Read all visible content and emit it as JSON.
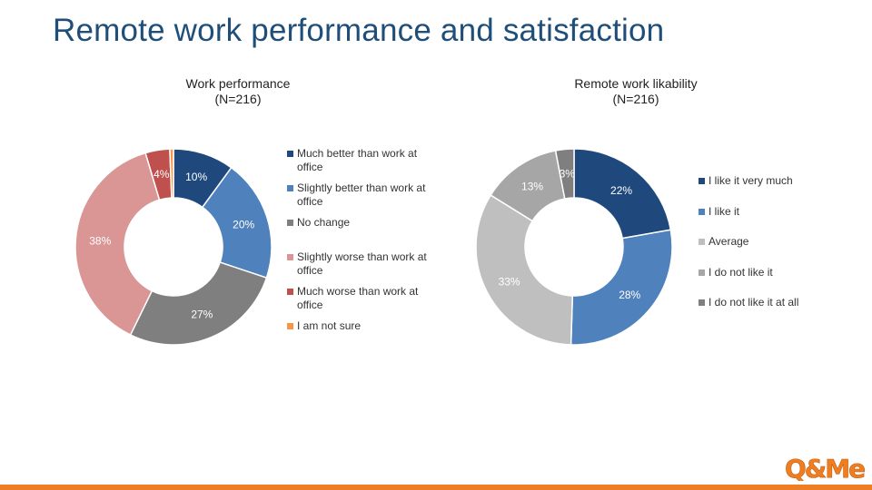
{
  "slide": {
    "title": "Remote work performance and satisfaction",
    "accent_color": "#ef7d22"
  },
  "logo": {
    "text": "Q&Me"
  },
  "chart_data": [
    {
      "type": "pie",
      "donut": true,
      "title": "Work performance",
      "subtitle": "(N=216)",
      "legend_position": "right",
      "series": [
        {
          "name": "Much better than work at office",
          "value": 10,
          "label": "10%",
          "color": "#1f497d",
          "label_color": "#ffffff"
        },
        {
          "name": "Slightly better than work at office",
          "value": 20,
          "label": "20%",
          "color": "#4f81bd",
          "label_color": "#ffffff"
        },
        {
          "name": "No change",
          "value": 27,
          "label": "27%",
          "color": "#7f7f7f",
          "label_color": "#ffffff"
        },
        {
          "name": "Slightly worse than work at office",
          "value": 38,
          "label": "38%",
          "color": "#da9694",
          "label_color": "#ffffff"
        },
        {
          "name": "Much worse than work at office",
          "value": 4,
          "label": "4%",
          "color": "#c0504d",
          "label_color": "#ffffff"
        },
        {
          "name": "I am not sure",
          "value": 0.6,
          "label": "",
          "color": "#f79646",
          "label_color": "#ffffff"
        }
      ]
    },
    {
      "type": "pie",
      "donut": true,
      "title": "Remote work likability",
      "subtitle": "(N=216)",
      "legend_position": "right",
      "series": [
        {
          "name": "I like it very much",
          "value": 22,
          "label": "22%",
          "color": "#1f497d",
          "label_color": "#ffffff"
        },
        {
          "name": "I like it",
          "value": 28,
          "label": "28%",
          "color": "#4f81bd",
          "label_color": "#ffffff"
        },
        {
          "name": "Average",
          "value": 33,
          "label": "33%",
          "color": "#bfbfbf",
          "label_color": "#ffffff"
        },
        {
          "name": "I do not like it",
          "value": 13,
          "label": "13%",
          "color": "#a6a6a6",
          "label_color": "#ffffff"
        },
        {
          "name": "I do not like it at all",
          "value": 3,
          "label": "3%",
          "color": "#7f7f7f",
          "label_color": "#ffffff"
        }
      ]
    }
  ]
}
